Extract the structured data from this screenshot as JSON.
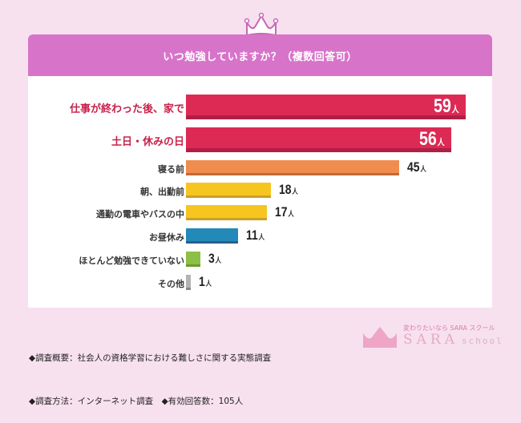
{
  "header": {
    "title": "いつ勉強していますか？（複数回答可）"
  },
  "colors": {
    "background": "#f8e1ee",
    "header": "#d774c9",
    "crimson": "#dc2a55",
    "orange": "#f08c4e",
    "yellow": "#f7c520",
    "blue": "#2389b9",
    "green": "#8cbf45",
    "gray": "#b3b3b3"
  },
  "chart_data": {
    "type": "bar",
    "orientation": "horizontal",
    "title": "いつ勉強していますか？（複数回答可）",
    "categories": [
      "仕事が終わった後、家で",
      "土日・休みの日",
      "寝る前",
      "朝、出勤前",
      "通勤の電車やバスの中",
      "お昼休み",
      "ほとんど勉強できていない",
      "その他"
    ],
    "values": [
      59,
      56,
      45,
      18,
      17,
      11,
      3,
      1
    ],
    "unit": "人",
    "xlabel": "",
    "ylabel": "",
    "grid": false,
    "legend": null
  },
  "rows": [
    {
      "label": "仕事が終わった後、家で",
      "value": "59",
      "unit": "人"
    },
    {
      "label": "土日・休みの日",
      "value": "56",
      "unit": "人"
    },
    {
      "label": "寝る前",
      "value": "45",
      "unit": "人"
    },
    {
      "label": "朝、出勤前",
      "value": "18",
      "unit": "人"
    },
    {
      "label": "通勤の電車やバスの中",
      "value": "17",
      "unit": "人"
    },
    {
      "label": "お昼休み",
      "value": "11",
      "unit": "人"
    },
    {
      "label": "ほとんど勉強できていない",
      "value": "3",
      "unit": "人"
    },
    {
      "label": "その他",
      "value": "1",
      "unit": "人"
    }
  ],
  "footer": {
    "line1": "◆調査概要：社会人の資格学習における難しさに関する実態調査",
    "line2": "◆調査方法：インターネット調査　◆有効回答数：105人"
  },
  "logo": {
    "tagline": "変わりたいなら SARA スクール",
    "name": "SARA",
    "sub": "school"
  }
}
